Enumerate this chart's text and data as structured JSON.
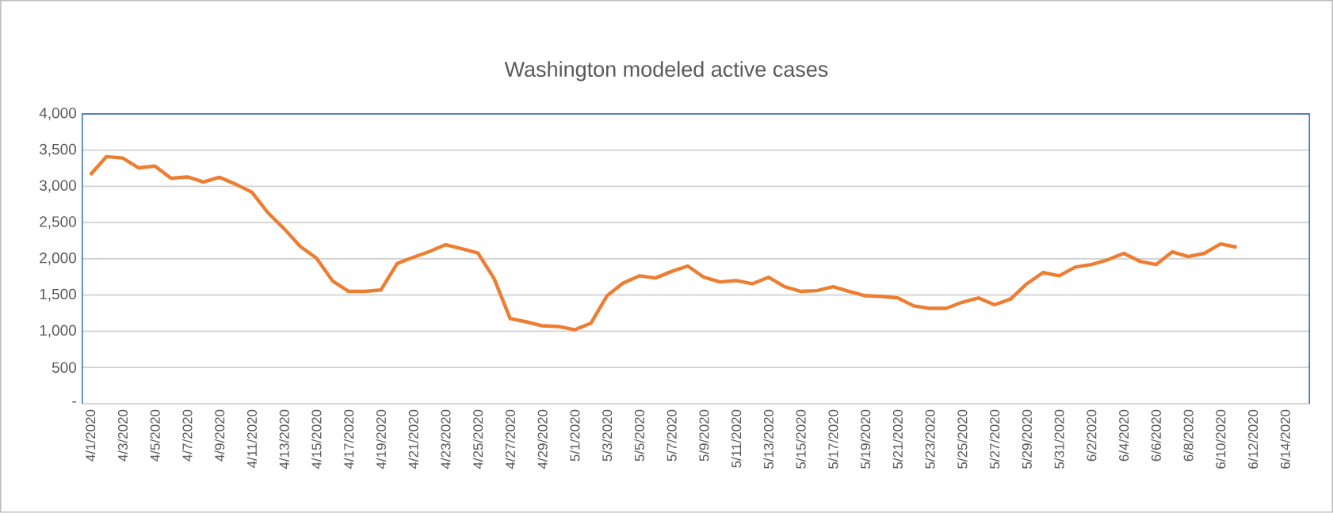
{
  "chart_data": {
    "type": "line",
    "title": "Washington modeled active cases",
    "categories": [
      "4/1/2020",
      null,
      "4/3/2020",
      null,
      "4/5/2020",
      null,
      "4/7/2020",
      null,
      "4/9/2020",
      null,
      "4/11/2020",
      null,
      "4/13/2020",
      null,
      "4/15/2020",
      null,
      "4/17/2020",
      null,
      "4/19/2020",
      null,
      "4/21/2020",
      null,
      "4/23/2020",
      null,
      "4/25/2020",
      null,
      "4/27/2020",
      null,
      "4/29/2020",
      null,
      "5/1/2020",
      null,
      "5/3/2020",
      null,
      "5/5/2020",
      null,
      "5/7/2020",
      null,
      "5/9/2020",
      null,
      "5/11/2020",
      null,
      "5/13/2020",
      null,
      "5/15/2020",
      null,
      "5/17/2020",
      null,
      "5/19/2020",
      null,
      "5/21/2020",
      null,
      "5/23/2020",
      null,
      "5/25/2020",
      null,
      "5/27/2020",
      null,
      "5/29/2020",
      null,
      "5/31/2020",
      null,
      "6/2/2020",
      null,
      "6/4/2020",
      null,
      "6/6/2020",
      null,
      "6/8/2020",
      null,
      "6/10/2020",
      null,
      "6/12/2020",
      null,
      "6/14/2020",
      null
    ],
    "values": [
      3160,
      3410,
      3390,
      3255,
      3280,
      3110,
      3130,
      3060,
      3125,
      3030,
      2920,
      2635,
      2415,
      2170,
      2010,
      1695,
      1550,
      1550,
      1570,
      1935,
      2020,
      2100,
      2195,
      2140,
      2080,
      1730,
      1175,
      1130,
      1075,
      1065,
      1020,
      1110,
      1490,
      1665,
      1765,
      1735,
      1825,
      1900,
      1745,
      1680,
      1700,
      1655,
      1745,
      1615,
      1550,
      1560,
      1615,
      1550,
      1490,
      1480,
      1460,
      1350,
      1315,
      1315,
      1400,
      1460,
      1365,
      1445,
      1655,
      1810,
      1765,
      1885,
      1920,
      1985,
      2075,
      1965,
      1920,
      2095,
      2030,
      2075,
      2205,
      2160,
      null,
      null,
      null,
      null
    ],
    "color": "#ed7d31",
    "ylim": [
      0,
      4000
    ],
    "yticks": [
      {
        "value": 0,
        "label": "-"
      },
      500,
      {
        "value": 1000,
        "label": "1,000"
      },
      {
        "value": 1500,
        "label": "1,500"
      },
      {
        "value": 2000,
        "label": "2,000"
      },
      {
        "value": 2500,
        "label": "2,500"
      },
      {
        "value": 3000,
        "label": "3,000"
      },
      {
        "value": 3500,
        "label": "3,500"
      },
      {
        "value": 4000,
        "label": "4,000"
      }
    ],
    "grid": "y",
    "marker": "none"
  }
}
